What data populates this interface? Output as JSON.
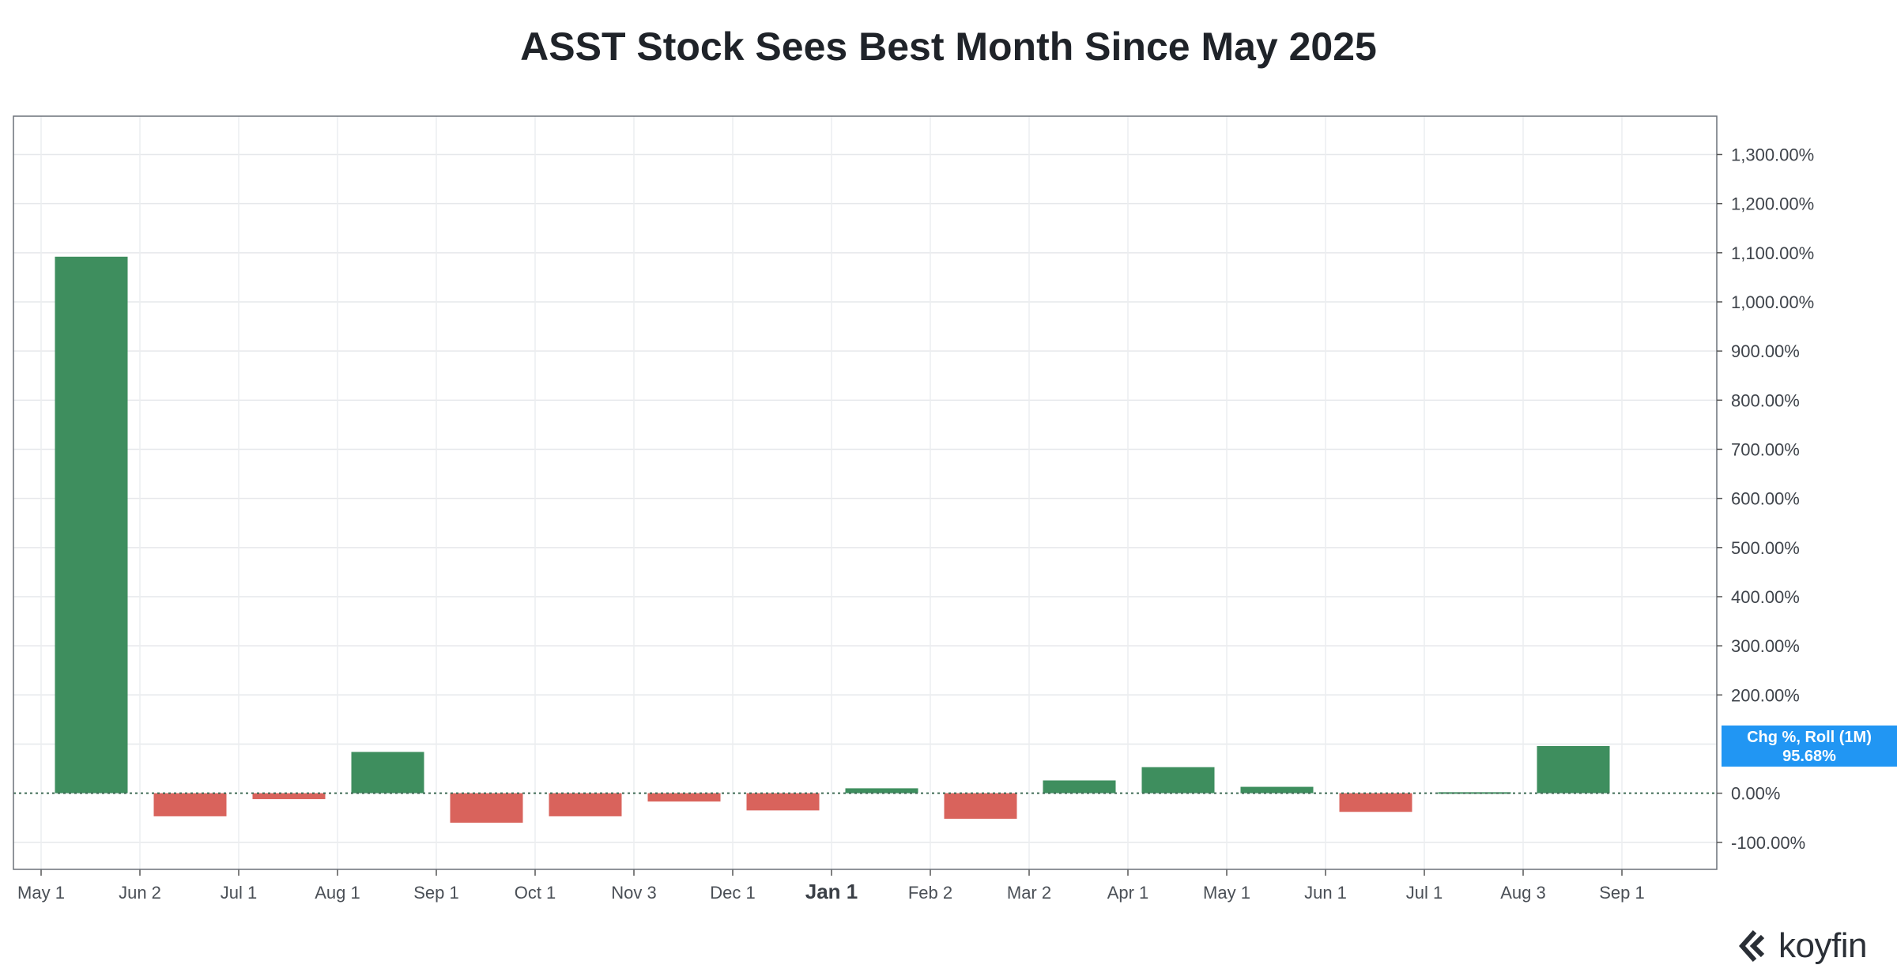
{
  "chart_data": {
    "type": "bar",
    "title": "ASST Stock Sees Best Month Since May 2025",
    "series": [
      {
        "values": [
          1092,
          -47,
          -12,
          84,
          -60,
          -47,
          -17,
          -35,
          10,
          -52,
          26,
          53,
          13,
          -38,
          2,
          96
        ],
        "positive_color": "#3e8e5e",
        "negative_color": "#d9635c"
      }
    ],
    "x_ticks": [
      "May 1",
      "Jun 2",
      "Jul 1",
      "Aug 1",
      "Sep 1",
      "Oct 1",
      "Nov 3",
      "Dec 1",
      "Jan 1",
      "Feb 2",
      "Mar 2",
      "Apr 1",
      "May 1",
      "Jun 1",
      "Jul 1",
      "Aug 3",
      "Sep 1"
    ],
    "y_ticks": [
      {
        "value": 1300,
        "label": "1,300.00%"
      },
      {
        "value": 1200,
        "label": "1,200.00%"
      },
      {
        "value": 1100,
        "label": "1,100.00%"
      },
      {
        "value": 1000,
        "label": "1,000.00%"
      },
      {
        "value": 900,
        "label": "900.00%"
      },
      {
        "value": 800,
        "label": "800.00%"
      },
      {
        "value": 700,
        "label": "700.00%"
      },
      {
        "value": 600,
        "label": "600.00%"
      },
      {
        "value": 500,
        "label": "500.00%"
      },
      {
        "value": 400,
        "label": "400.00%"
      },
      {
        "value": 300,
        "label": "300.00%"
      },
      {
        "value": 200,
        "label": "200.00%"
      },
      {
        "value": 0,
        "label": "0.00%"
      },
      {
        "value": -100,
        "label": "-100.00%"
      }
    ],
    "ylim": [
      -155,
      1378
    ],
    "grid": true,
    "y_axis_side": "right",
    "last_value_label": {
      "name": "Chg %, Roll (1M)",
      "value": "95.68%",
      "color": "#2196f3"
    }
  },
  "branding": {
    "logo_text": "koyfin"
  }
}
